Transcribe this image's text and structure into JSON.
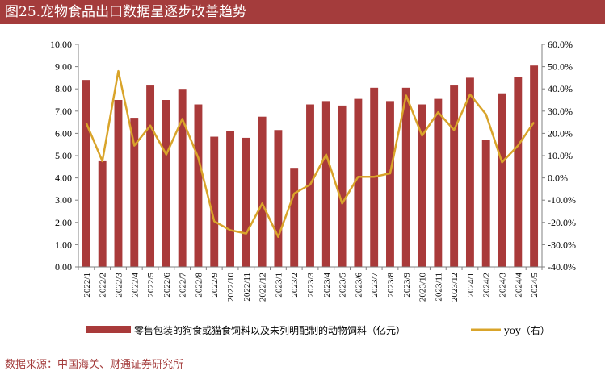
{
  "header": {
    "title": "图25.宠物食品出口数据呈逐步改善趋势"
  },
  "footer": {
    "source": "数据来源：中国海关、财通证券研究所"
  },
  "colors": {
    "bar": "#a93a3a",
    "line": "#d9a42a",
    "title_bg": "#a43c3c"
  },
  "chart_data": {
    "type": "bar",
    "categories": [
      "2022/1",
      "2022/2",
      "2022/3",
      "2022/4",
      "2022/5",
      "2022/6",
      "2022/7",
      "2022/8",
      "2022/9",
      "2022/10",
      "2022/11",
      "2022/12",
      "2023/1",
      "2023/2",
      "2023/3",
      "2023/4",
      "2023/5",
      "2023/6",
      "2023/7",
      "2023/8",
      "2023/9",
      "2023/10",
      "2023/11",
      "2023/12",
      "2024/1",
      "2024/2",
      "2024/3",
      "2024/4",
      "2024/5"
    ],
    "series": [
      {
        "name": "零售包装的狗食或猫食饲料以及未列明配制的动物饲料（亿元）",
        "type": "bar",
        "axis": "left",
        "values": [
          8.4,
          4.75,
          7.5,
          6.7,
          8.15,
          7.5,
          8.0,
          7.3,
          5.85,
          6.1,
          5.8,
          6.75,
          6.15,
          4.45,
          7.3,
          7.45,
          7.25,
          7.55,
          8.05,
          7.45,
          8.05,
          7.3,
          7.55,
          8.15,
          8.5,
          5.7,
          7.8,
          8.55,
          9.05
        ]
      },
      {
        "name": "yoy（右）",
        "type": "line",
        "axis": "right",
        "values": [
          24.5,
          7.5,
          48.0,
          14.5,
          23.5,
          10.5,
          26.5,
          9.0,
          -19.5,
          -23.5,
          -25.0,
          -11.5,
          -26.5,
          -7.0,
          -3.0,
          10.5,
          -11.5,
          0.5,
          0.5,
          2.0,
          37.0,
          19.0,
          29.5,
          21.5,
          37.5,
          28.5,
          7.0,
          14.5,
          25.0
        ]
      }
    ],
    "y_left": {
      "min": 0,
      "max": 10,
      "step": 1,
      "tick_labels": [
        "0.00",
        "1.00",
        "2.00",
        "3.00",
        "4.00",
        "5.00",
        "6.00",
        "7.00",
        "8.00",
        "9.00",
        "10.00"
      ]
    },
    "y_right": {
      "min": -40,
      "max": 60,
      "step": 10,
      "tick_labels": [
        "-40.0%",
        "-30.0%",
        "-20.0%",
        "-10.0%",
        "0.0%",
        "10.0%",
        "20.0%",
        "30.0%",
        "40.0%",
        "50.0%",
        "60.0%"
      ]
    },
    "grid": false,
    "legend_position": "bottom"
  }
}
